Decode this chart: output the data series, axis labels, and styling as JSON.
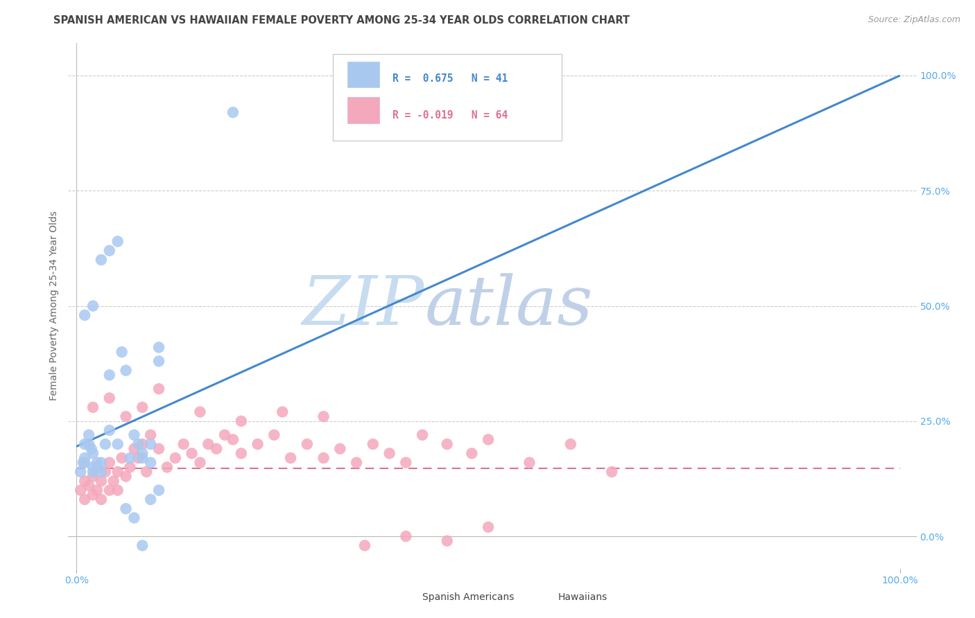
{
  "title": "SPANISH AMERICAN VS HAWAIIAN FEMALE POVERTY AMONG 25-34 YEAR OLDS CORRELATION CHART",
  "source": "Source: ZipAtlas.com",
  "ylabel": "Female Poverty Among 25-34 Year Olds",
  "ytick_labels": [
    "0.0%",
    "25.0%",
    "50.0%",
    "75.0%",
    "100.0%"
  ],
  "ytick_values": [
    0.0,
    0.25,
    0.5,
    0.75,
    1.0
  ],
  "xtick_labels": [
    "0.0%",
    "100.0%"
  ],
  "xtick_values": [
    0.0,
    1.0
  ],
  "legend_label1": "Spanish Americans",
  "legend_label2": "Hawaiians",
  "R1": "0.675",
  "N1": "41",
  "R2": "-0.019",
  "N2": "64",
  "color1": "#A8C8F0",
  "color2": "#F4A8BC",
  "line_color1": "#4488CC",
  "line_color2": "#E07090",
  "background_color": "#FFFFFF",
  "grid_color": "#CCCCCC",
  "title_color": "#444444",
  "source_color": "#999999",
  "axis_tick_color": "#55AAEE",
  "ylabel_color": "#666666",
  "watermark_zip_color": "#C8DCF0",
  "watermark_atlas_color": "#C0D0E8",
  "blue_line_y0": 0.195,
  "blue_line_y1": 1.0,
  "pink_line_y": 0.148,
  "spanish_x": [
    0.005,
    0.008,
    0.01,
    0.01,
    0.01,
    0.015,
    0.015,
    0.018,
    0.02,
    0.02,
    0.02,
    0.025,
    0.025,
    0.03,
    0.03,
    0.035,
    0.04,
    0.04,
    0.05,
    0.055,
    0.06,
    0.065,
    0.07,
    0.075,
    0.08,
    0.08,
    0.09,
    0.09,
    0.1,
    0.1,
    0.01,
    0.02,
    0.03,
    0.04,
    0.05,
    0.06,
    0.07,
    0.08,
    0.09,
    0.1,
    0.19
  ],
  "spanish_y": [
    0.14,
    0.16,
    0.16,
    0.17,
    0.2,
    0.2,
    0.22,
    0.19,
    0.14,
    0.15,
    0.18,
    0.15,
    0.16,
    0.14,
    0.16,
    0.2,
    0.23,
    0.35,
    0.2,
    0.4,
    0.36,
    0.17,
    0.22,
    0.2,
    0.17,
    0.18,
    0.16,
    0.2,
    0.38,
    0.41,
    0.48,
    0.5,
    0.6,
    0.62,
    0.64,
    0.06,
    0.04,
    -0.02,
    0.08,
    0.1,
    0.92
  ],
  "hawaiian_x": [
    0.005,
    0.01,
    0.01,
    0.015,
    0.02,
    0.02,
    0.025,
    0.03,
    0.03,
    0.035,
    0.04,
    0.04,
    0.045,
    0.05,
    0.05,
    0.055,
    0.06,
    0.065,
    0.07,
    0.075,
    0.08,
    0.085,
    0.09,
    0.1,
    0.11,
    0.12,
    0.13,
    0.14,
    0.15,
    0.16,
    0.17,
    0.18,
    0.19,
    0.2,
    0.22,
    0.24,
    0.26,
    0.28,
    0.3,
    0.32,
    0.34,
    0.36,
    0.38,
    0.4,
    0.42,
    0.45,
    0.48,
    0.5,
    0.55,
    0.6,
    0.65,
    0.02,
    0.04,
    0.06,
    0.08,
    0.1,
    0.15,
    0.2,
    0.25,
    0.3,
    0.35,
    0.4,
    0.45,
    0.5
  ],
  "hawaiian_y": [
    0.1,
    0.08,
    0.12,
    0.11,
    0.09,
    0.13,
    0.1,
    0.12,
    0.08,
    0.14,
    0.1,
    0.16,
    0.12,
    0.1,
    0.14,
    0.17,
    0.13,
    0.15,
    0.19,
    0.17,
    0.2,
    0.14,
    0.22,
    0.19,
    0.15,
    0.17,
    0.2,
    0.18,
    0.16,
    0.2,
    0.19,
    0.22,
    0.21,
    0.18,
    0.2,
    0.22,
    0.17,
    0.2,
    0.17,
    0.19,
    0.16,
    0.2,
    0.18,
    0.16,
    0.22,
    0.2,
    0.18,
    0.21,
    0.16,
    0.2,
    0.14,
    0.28,
    0.3,
    0.26,
    0.28,
    0.32,
    0.27,
    0.25,
    0.27,
    0.26,
    -0.02,
    0.0,
    -0.01,
    0.02
  ]
}
